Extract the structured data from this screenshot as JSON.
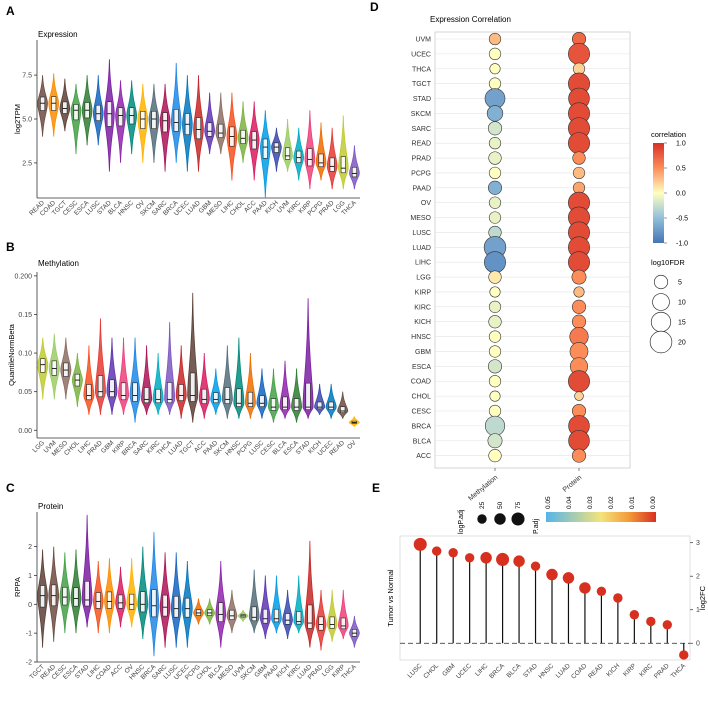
{
  "colors": {
    "cancers": {
      "ACC": "#d81b60",
      "BLCA": "#8e24aa",
      "BRCA": "#1e88e5",
      "CESC": "#43a047",
      "CHOL": "#7cb342",
      "COAD": "#fb8c00",
      "DLBC": "#26a69a",
      "ESCA": "#2e7d32",
      "GBM": "#5e35b1",
      "HNSC": "#00897b",
      "KICH": "#3949ab",
      "KIRC": "#00acc1",
      "KIRP": "#ec407a",
      "LGG": "#c0ca33",
      "LIHC": "#f4511e",
      "LUAD": "#c62828",
      "LUSC": "#1565c0",
      "MESO": "#8d6e63",
      "OV": "#ffb300",
      "PAAD": "#039be5",
      "PCPG": "#ef6c00",
      "PRAD": "#e53935",
      "READ": "#6d4c41",
      "SARC": "#ad1457",
      "SKCM": "#546e7a",
      "STAD": "#7b1fa2",
      "TGCT": "#5d4037",
      "THCA": "#7e57c2",
      "UCEC": "#0277bd",
      "UCS": "#9e9d24",
      "UVM": "#9ccc65"
    }
  },
  "panels": {
    "A": {
      "letter": "A",
      "title": "Expression"
    },
    "B": {
      "letter": "B",
      "title": "Methylation"
    },
    "C": {
      "letter": "C",
      "title": "Protein"
    },
    "D": {
      "letter": "D",
      "title": "Expression Correlation"
    },
    "E": {
      "letter": "E",
      "title": ""
    }
  },
  "chart_data": [
    {
      "id": "A",
      "type": "violin",
      "title": "Expression",
      "ylabel": "log2TPM",
      "ylim": [
        0.5,
        9.5
      ],
      "yticks": [
        2.5,
        5.0,
        7.5
      ],
      "ytick_labels": [
        "2.5",
        "5.0",
        "7.5"
      ],
      "categories": [
        "READ",
        "COAD",
        "TGCT",
        "CESC",
        "ESCA",
        "LUSC",
        "STAD",
        "BLCA",
        "HNSC",
        "OV",
        "SKCM",
        "SARC",
        "BRCA",
        "UCEC",
        "LUAD",
        "GBM",
        "MESO",
        "LIHC",
        "CHOL",
        "ACC",
        "PAAD",
        "KICH",
        "UVM",
        "KIRC",
        "KIRP",
        "PCPG",
        "PRAD",
        "LGG",
        "THCA"
      ],
      "medians": [
        5.9,
        5.9,
        5.6,
        5.5,
        5.5,
        5.3,
        5.3,
        5.2,
        5.2,
        5.0,
        5.0,
        4.9,
        4.8,
        4.7,
        4.4,
        4.3,
        4.2,
        4.0,
        3.9,
        3.8,
        3.4,
        3.4,
        2.9,
        2.8,
        2.7,
        2.5,
        2.3,
        2.2,
        1.9
      ],
      "mins": [
        4.0,
        4.0,
        4.3,
        3.0,
        3.5,
        3.5,
        2.0,
        2.5,
        3.0,
        2.5,
        2.5,
        2.0,
        2.5,
        2.0,
        2.0,
        3.0,
        3.0,
        1.5,
        2.5,
        1.5,
        0.5,
        2.0,
        2.0,
        1.5,
        1.0,
        1.5,
        1.0,
        1.0,
        1.0
      ],
      "maxs": [
        7.5,
        7.6,
        7.3,
        7.0,
        7.5,
        7.5,
        8.4,
        7.2,
        7.2,
        7.0,
        7.0,
        7.0,
        8.2,
        7.5,
        7.5,
        6.5,
        6.5,
        6.5,
        6.0,
        6.0,
        5.5,
        4.5,
        5.0,
        4.5,
        5.5,
        4.8,
        4.5,
        5.2,
        3.5
      ]
    },
    {
      "id": "B",
      "type": "violin",
      "title": "Methylation",
      "ylabel": "QuantileNormBeta",
      "ylim": [
        -0.01,
        0.205
      ],
      "yticks": [
        0.0,
        0.05,
        0.1,
        0.15,
        0.2
      ],
      "ytick_labels": [
        "0.00",
        "0.05",
        "0.10",
        "0.15",
        "0.200"
      ],
      "categories": [
        "LGG",
        "UVM",
        "MESO",
        "CHOL",
        "LIHC",
        "PRAD",
        "GBM",
        "KIRP",
        "BRCA",
        "SARC",
        "KIRC",
        "THCA",
        "LUAD",
        "TGCT",
        "ACC",
        "PAAD",
        "SKCM",
        "HNSC",
        "PCPG",
        "LUSC",
        "CESC",
        "BLCA",
        "ESCA",
        "STAD",
        "KICH",
        "UCEC",
        "READ",
        "OV"
      ],
      "medians": [
        0.085,
        0.08,
        0.078,
        0.065,
        0.045,
        0.05,
        0.05,
        0.045,
        0.045,
        0.04,
        0.04,
        0.04,
        0.045,
        0.045,
        0.04,
        0.04,
        0.04,
        0.035,
        0.035,
        0.035,
        0.03,
        0.03,
        0.03,
        0.03,
        0.03,
        0.03,
        0.025,
        0.01
      ],
      "mins": [
        0.04,
        0.04,
        0.04,
        0.03,
        0.02,
        0.02,
        0.02,
        0.02,
        0.01,
        0.02,
        0.02,
        0.02,
        0.015,
        0.01,
        0.015,
        0.02,
        0.015,
        0.015,
        0.015,
        0.015,
        0.01,
        0.015,
        0.01,
        0.015,
        0.02,
        0.015,
        0.015,
        0.005
      ],
      "maxs": [
        0.12,
        0.125,
        0.12,
        0.1,
        0.11,
        0.145,
        0.12,
        0.12,
        0.12,
        0.11,
        0.1,
        0.14,
        0.11,
        0.178,
        0.1,
        0.08,
        0.11,
        0.12,
        0.1,
        0.08,
        0.08,
        0.09,
        0.08,
        0.171,
        0.06,
        0.06,
        0.05,
        0.018
      ]
    },
    {
      "id": "C",
      "type": "violin",
      "title": "Protein",
      "ylabel": "RPPA",
      "ylim": [
        -2.0,
        3.2
      ],
      "yticks": [
        -2,
        -1,
        0,
        1,
        2
      ],
      "ytick_labels": [
        "-2",
        "-1",
        "0",
        "1",
        "2"
      ],
      "categories": [
        "TGCT",
        "READ",
        "CESC",
        "ESCA",
        "STAD",
        "LIHC",
        "COAD",
        "ACC",
        "OV",
        "HNSC",
        "BRCA",
        "SARC",
        "LUSC",
        "UCEC",
        "PCPG",
        "CHOL",
        "BLCA",
        "MESO",
        "UVM",
        "SKCM",
        "GBM",
        "PAAD",
        "KICH",
        "KIRC",
        "LUAD",
        "PRAD",
        "LGG",
        "KIRP",
        "THCA"
      ],
      "medians": [
        0.3,
        0.3,
        0.25,
        0.2,
        0.15,
        0.1,
        0.1,
        0.05,
        0.0,
        0.0,
        -0.05,
        -0.1,
        -0.15,
        -0.15,
        -0.3,
        -0.3,
        -0.35,
        -0.4,
        -0.4,
        -0.45,
        -0.5,
        -0.5,
        -0.55,
        -0.6,
        -0.65,
        -0.7,
        -0.7,
        -0.75,
        -1.0
      ],
      "mins": [
        -1.5,
        -1.3,
        -1.0,
        -1.0,
        -0.8,
        -1.0,
        -1.0,
        -0.8,
        -0.8,
        -1.2,
        -1.8,
        -1.5,
        -1.5,
        -1.5,
        -0.7,
        -0.7,
        -1.5,
        -1.0,
        -0.6,
        -1.0,
        -1.2,
        -1.0,
        -1.2,
        -1.0,
        -1.5,
        -1.6,
        -1.3,
        -1.2,
        -1.5
      ],
      "maxs": [
        1.9,
        2.0,
        1.8,
        1.9,
        3.1,
        1.5,
        1.6,
        1.3,
        1.6,
        2.0,
        2.5,
        1.8,
        1.8,
        1.5,
        0.2,
        0.2,
        1.5,
        0.5,
        -0.2,
        1.2,
        1.0,
        1.0,
        0.5,
        1.0,
        2.2,
        0.5,
        0.5,
        0.5,
        -0.4
      ]
    },
    {
      "id": "D",
      "type": "dot",
      "title": "Expression Correlation",
      "columns": [
        "Methylation",
        "Protein"
      ],
      "rows": [
        "UVM",
        "UCEC",
        "THCA",
        "TGCT",
        "STAD",
        "SKCM",
        "SARC",
        "READ",
        "PRAD",
        "PCPG",
        "PAAD",
        "OV",
        "MESO",
        "LUSC",
        "LUAD",
        "LIHC",
        "LGG",
        "KIRP",
        "KIRC",
        "KICH",
        "HNSC",
        "GBM",
        "ESCA",
        "COAD",
        "CHOL",
        "CESC",
        "BRCA",
        "BLCA",
        "ACC"
      ],
      "correlation": [
        [
          0.3,
          0.7
        ],
        [
          0.0,
          0.8
        ],
        [
          0.0,
          0.2
        ],
        [
          0.0,
          0.85
        ],
        [
          -0.7,
          0.85
        ],
        [
          -0.6,
          0.85
        ],
        [
          -0.2,
          0.85
        ],
        [
          -0.1,
          0.85
        ],
        [
          -0.1,
          0.5
        ],
        [
          0.0,
          0.3
        ],
        [
          -0.6,
          0.4
        ],
        [
          -0.1,
          0.85
        ],
        [
          -0.1,
          0.85
        ],
        [
          -0.3,
          0.85
        ],
        [
          -0.7,
          0.85
        ],
        [
          -0.8,
          0.85
        ],
        [
          0.1,
          0.5
        ],
        [
          0.0,
          0.3
        ],
        [
          -0.1,
          0.5
        ],
        [
          -0.1,
          0.5
        ],
        [
          0.0,
          0.6
        ],
        [
          0.0,
          0.5
        ],
        [
          -0.2,
          0.5
        ],
        [
          0.0,
          0.85
        ],
        [
          0.0,
          0.2
        ],
        [
          0.0,
          0.5
        ],
        [
          -0.3,
          0.85
        ],
        [
          -0.2,
          0.85
        ],
        [
          0.0,
          0.5
        ]
      ],
      "log10FDR": [
        [
          3,
          5
        ],
        [
          3,
          19
        ],
        [
          2,
          3
        ],
        [
          3,
          19
        ],
        [
          16,
          18
        ],
        [
          8,
          19
        ],
        [
          5,
          19
        ],
        [
          3,
          19
        ],
        [
          4,
          4
        ],
        [
          3,
          3
        ],
        [
          5,
          3
        ],
        [
          3,
          19
        ],
        [
          3,
          19
        ],
        [
          4,
          19
        ],
        [
          20,
          19
        ],
        [
          19,
          19
        ],
        [
          4,
          6
        ],
        [
          2,
          2
        ],
        [
          3,
          5
        ],
        [
          4,
          5
        ],
        [
          3,
          13
        ],
        [
          3,
          12
        ],
        [
          5,
          11
        ],
        [
          3,
          19
        ],
        [
          2,
          1
        ],
        [
          3,
          5
        ],
        [
          15,
          18
        ],
        [
          6,
          18
        ],
        [
          4,
          5
        ]
      ],
      "legend": {
        "color_title": "correlation",
        "color_ticks": [
          "1.0",
          "0.5",
          "0.0",
          "-0.5",
          "-1.0"
        ],
        "size_title": "log10FDR",
        "size_ticks": [
          "5",
          "10",
          "15",
          "20"
        ]
      }
    },
    {
      "id": "E",
      "type": "lollipop",
      "ylabel": "log2FC",
      "xlabel": "Tumor vs Normal",
      "ylim": [
        -0.5,
        3.2
      ],
      "yticks": [
        0,
        1,
        2,
        3
      ],
      "ytick_labels": [
        "0",
        "1",
        "2",
        "3"
      ],
      "categories": [
        "LUSC",
        "CHOL",
        "GBM",
        "UCEC",
        "LIHC",
        "BRCA",
        "BLCA",
        "STAD",
        "HNSC",
        "LUAD",
        "COAD",
        "READ",
        "KICH",
        "KIRP",
        "KIRC",
        "PRAD",
        "THCA"
      ],
      "values": [
        2.95,
        2.75,
        2.7,
        2.55,
        2.55,
        2.5,
        2.45,
        2.3,
        2.05,
        1.95,
        1.65,
        1.55,
        1.35,
        0.85,
        0.65,
        0.55,
        -0.35
      ],
      "padj": [
        0.0,
        0.0,
        0.0,
        0.0,
        0.0,
        0.0,
        0.0,
        0.0,
        0.0,
        0.0,
        0.0,
        0.0,
        0.0,
        0.0,
        0.0,
        0.0,
        0.0
      ],
      "sizes": [
        75,
        25,
        25,
        25,
        50,
        75,
        50,
        25,
        50,
        50,
        50,
        25,
        25,
        25,
        25,
        25,
        25
      ],
      "legend": {
        "size_title": "logP.adj",
        "size_ticks": [
          "25",
          "50",
          "75"
        ],
        "color_title": "P.adj",
        "color_ticks": [
          "0.05",
          "0.04",
          "0.03",
          "0.02",
          "0.01",
          "0.00"
        ]
      }
    }
  ]
}
